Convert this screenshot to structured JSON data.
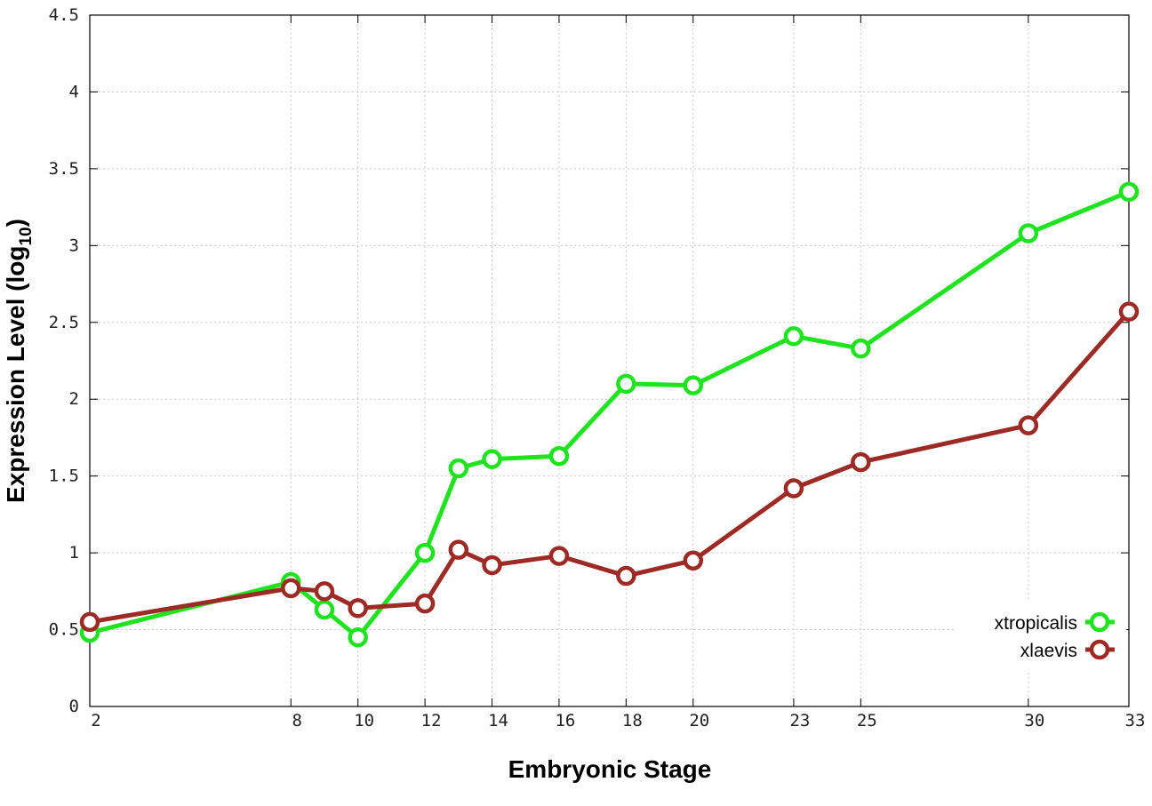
{
  "chart_data": {
    "type": "line",
    "title": "",
    "xlabel": "Embryonic Stage",
    "ylabel": "Expression Level (log",
    "ylabel_sub": "10",
    "ylabel_close": ")",
    "x": [
      2,
      8,
      9,
      10,
      12,
      13,
      14,
      16,
      18,
      20,
      23,
      25,
      30,
      33
    ],
    "x_ticks": [
      "2",
      "8",
      "10",
      "12",
      "14",
      "16",
      "18",
      "20",
      "23",
      "25",
      "30",
      "33"
    ],
    "y_ticks": [
      "0",
      "0.5",
      "1",
      "1.5",
      "2",
      "2.5",
      "3",
      "3.5",
      "4",
      "4.5"
    ],
    "xlim": [
      2,
      33
    ],
    "ylim": [
      0,
      4.5
    ],
    "grid": true,
    "legend_position": "bottom-right",
    "series": [
      {
        "name": "xtropicalis",
        "color": "#1fe31f",
        "values": [
          0.48,
          0.81,
          0.63,
          0.45,
          1.0,
          1.55,
          1.61,
          1.63,
          2.1,
          2.09,
          2.41,
          2.33,
          3.08,
          3.35
        ]
      },
      {
        "name": "xlaevis",
        "color": "#9c2a25",
        "values": [
          0.55,
          0.77,
          0.75,
          0.64,
          0.67,
          1.02,
          0.92,
          0.98,
          0.85,
          0.95,
          1.42,
          1.59,
          1.83,
          2.57
        ]
      }
    ]
  }
}
